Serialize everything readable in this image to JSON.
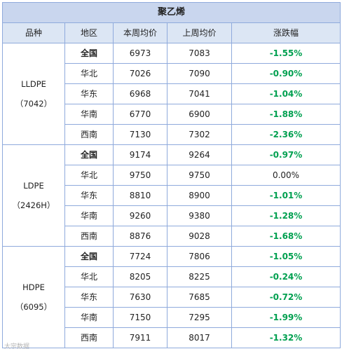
{
  "title": "聚乙烯",
  "headers": [
    "品种",
    "地区",
    "本周均价",
    "上周均价",
    "涨跌幅"
  ],
  "groups": [
    {
      "grade_lines": [
        "LLDPE",
        "（7042）"
      ],
      "rows": [
        {
          "region": "全国",
          "this_week": "6973",
          "last_week": "7083",
          "change": "-1.55%"
        },
        {
          "region": "华北",
          "this_week": "7026",
          "last_week": "7090",
          "change": "-0.90%"
        },
        {
          "region": "华东",
          "this_week": "6968",
          "last_week": "7041",
          "change": "-1.04%"
        },
        {
          "region": "华南",
          "this_week": "6770",
          "last_week": "6900",
          "change": "-1.88%"
        },
        {
          "region": "西南",
          "this_week": "7130",
          "last_week": "7302",
          "change": "-2.36%"
        }
      ]
    },
    {
      "grade_lines": [
        "LDPE",
        "（2426H）"
      ],
      "rows": [
        {
          "region": "全国",
          "this_week": "9174",
          "last_week": "9264",
          "change": "-0.97%"
        },
        {
          "region": "华北",
          "this_week": "9750",
          "last_week": "9750",
          "change": "0.00%"
        },
        {
          "region": "华东",
          "this_week": "8810",
          "last_week": "8900",
          "change": "-1.01%"
        },
        {
          "region": "华南",
          "this_week": "9260",
          "last_week": "9380",
          "change": "-1.28%"
        },
        {
          "region": "西南",
          "this_week": "8876",
          "last_week": "9028",
          "change": "-1.68%"
        }
      ]
    },
    {
      "grade_lines": [
        "HDPE",
        "（6095）"
      ],
      "rows": [
        {
          "region": "全国",
          "this_week": "7724",
          "last_week": "7806",
          "change": "-1.05%"
        },
        {
          "region": "华北",
          "this_week": "8205",
          "last_week": "8225",
          "change": "-0.24%"
        },
        {
          "region": "华东",
          "this_week": "7630",
          "last_week": "7685",
          "change": "-0.72%"
        },
        {
          "region": "华南",
          "this_week": "7150",
          "last_week": "7295",
          "change": "-1.99%"
        },
        {
          "region": "西南",
          "this_week": "7911",
          "last_week": "8017",
          "change": "-1.32%"
        }
      ]
    }
  ],
  "watermark": "大宗数据"
}
